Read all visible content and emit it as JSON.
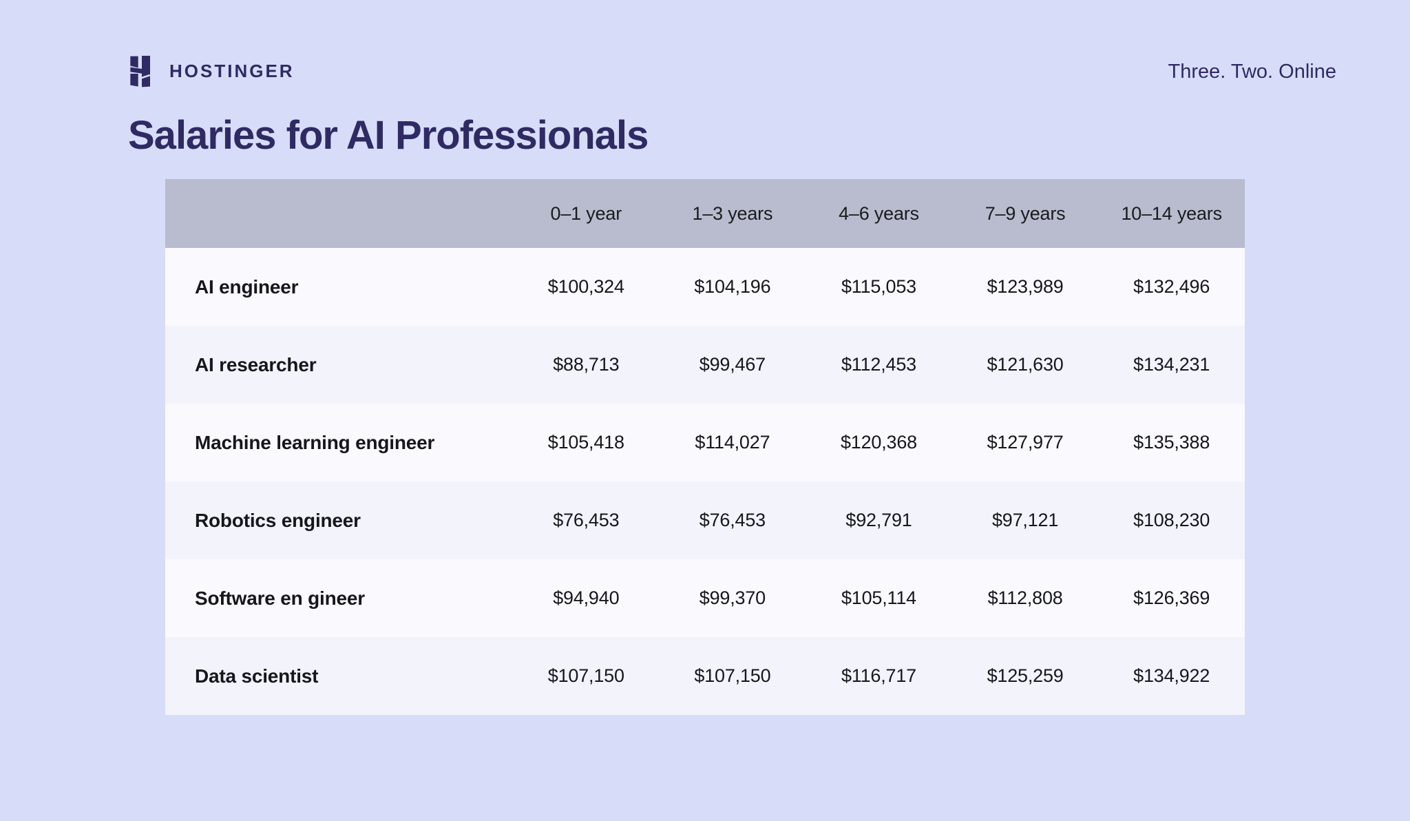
{
  "brand": {
    "logo_text": "HOSTINGER",
    "tagline": "Three. Two. Online",
    "logo_icon": "hostinger-h-mark"
  },
  "page_title": "Salaries for AI Professionals",
  "table": {
    "columns": [
      "0–1 year",
      "1–3 years",
      "4–6 years",
      "7–9 years",
      "10–14 years"
    ],
    "rows": [
      {
        "label": "AI engineer",
        "values": [
          "$100,324",
          "$104,196",
          "$115,053",
          "$123,989",
          "$132,496"
        ]
      },
      {
        "label": "AI researcher",
        "values": [
          "$88,713",
          "$99,467",
          "$112,453",
          "$121,630",
          "$134,231"
        ]
      },
      {
        "label": "Machine learning engineer",
        "values": [
          "$105,418",
          "$114,027",
          "$120,368",
          "$127,977",
          "$135,388"
        ]
      },
      {
        "label": "Robotics engineer",
        "values": [
          "$76,453",
          "$76,453",
          "$92,791",
          "$97,121",
          "$108,230"
        ]
      },
      {
        "label": "Software en gineer",
        "values": [
          "$94,940",
          "$99,370",
          "$105,114",
          "$112,808",
          "$126,369"
        ]
      },
      {
        "label": "Data scientist",
        "values": [
          "$107,150",
          "$107,150",
          "$116,717",
          "$125,259",
          "$134,922"
        ]
      }
    ]
  },
  "chart_data": {
    "type": "table",
    "title": "Salaries for AI Professionals",
    "columns": [
      "0–1 year",
      "1–3 years",
      "4–6 years",
      "7–9 years",
      "10–14 years"
    ],
    "unit": "USD per year",
    "rows": [
      {
        "label": "AI engineer",
        "values": [
          100324,
          104196,
          115053,
          123989,
          132496
        ]
      },
      {
        "label": "AI researcher",
        "values": [
          88713,
          99467,
          112453,
          121630,
          134231
        ]
      },
      {
        "label": "Machine learning engineer",
        "values": [
          105418,
          114027,
          120368,
          127977,
          135388
        ]
      },
      {
        "label": "Robotics engineer",
        "values": [
          76453,
          76453,
          92791,
          97121,
          108230
        ]
      },
      {
        "label": "Software en gineer",
        "values": [
          94940,
          99370,
          105114,
          112808,
          126369
        ]
      },
      {
        "label": "Data scientist",
        "values": [
          107150,
          107150,
          116717,
          125259,
          134922
        ]
      }
    ]
  },
  "colors": {
    "background": "#d7dcf8",
    "table_header": "#b8bcce",
    "row_odd": "#fafafe",
    "row_even": "#f2f3fb",
    "brand_dark": "#2f2a63",
    "table_text": "#16171b"
  }
}
